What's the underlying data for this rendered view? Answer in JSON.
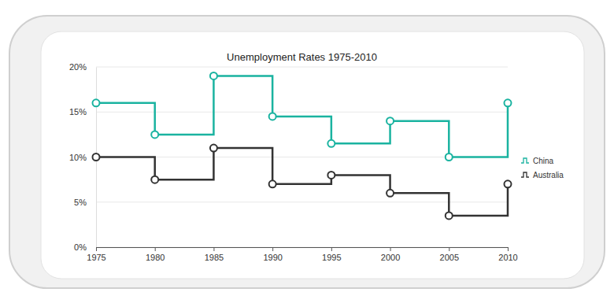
{
  "chart_data": {
    "type": "line",
    "title": "Unemployment Rates 1975-2010",
    "x": [
      1975,
      1980,
      1985,
      1990,
      1995,
      2000,
      2005,
      2010
    ],
    "xlim": [
      1975,
      2010
    ],
    "xticks": [
      1975,
      1980,
      1985,
      1990,
      1995,
      2000,
      2005,
      2010
    ],
    "ylim": [
      0,
      20
    ],
    "yticks": [
      {
        "value": 0,
        "label": "0%"
      },
      {
        "value": 5,
        "label": "5%"
      },
      {
        "value": 10,
        "label": "10%"
      },
      {
        "value": 15,
        "label": "15%"
      },
      {
        "value": 20,
        "label": "20%"
      }
    ],
    "grid": true,
    "legend": "right",
    "line_style": "step",
    "marker": "circle",
    "series": [
      {
        "name": "China",
        "color": "#1ab3a0",
        "values": [
          16,
          12.5,
          19,
          14.5,
          11.5,
          14,
          10,
          16
        ]
      },
      {
        "name": "Australia",
        "color": "#333333",
        "values": [
          10,
          7.5,
          11,
          7,
          8,
          6,
          3.5,
          7
        ]
      }
    ]
  }
}
